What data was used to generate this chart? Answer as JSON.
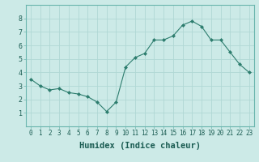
{
  "x": [
    0,
    1,
    2,
    3,
    4,
    5,
    6,
    7,
    8,
    9,
    10,
    11,
    12,
    13,
    14,
    15,
    16,
    17,
    18,
    19,
    20,
    21,
    22,
    23
  ],
  "y": [
    3.5,
    3.0,
    2.7,
    2.8,
    2.5,
    2.4,
    2.2,
    1.8,
    1.1,
    1.8,
    4.4,
    5.1,
    5.4,
    6.4,
    6.4,
    6.7,
    7.5,
    7.8,
    7.4,
    6.4,
    6.4,
    5.5,
    4.6,
    4.0
  ],
  "xlabel": "Humidex (Indice chaleur)",
  "ylim": [
    0,
    9
  ],
  "xlim_min": -0.5,
  "xlim_max": 23.5,
  "yticks": [
    1,
    2,
    3,
    4,
    5,
    6,
    7,
    8
  ],
  "xticks": [
    0,
    1,
    2,
    3,
    4,
    5,
    6,
    7,
    8,
    9,
    10,
    11,
    12,
    13,
    14,
    15,
    16,
    17,
    18,
    19,
    20,
    21,
    22,
    23
  ],
  "line_color": "#2d7d6e",
  "marker_color": "#2d7d6e",
  "bg_color": "#cceae7",
  "grid_color": "#b0d8d4",
  "xlabel_fontsize": 7.5,
  "tick_fontsize": 5.5
}
